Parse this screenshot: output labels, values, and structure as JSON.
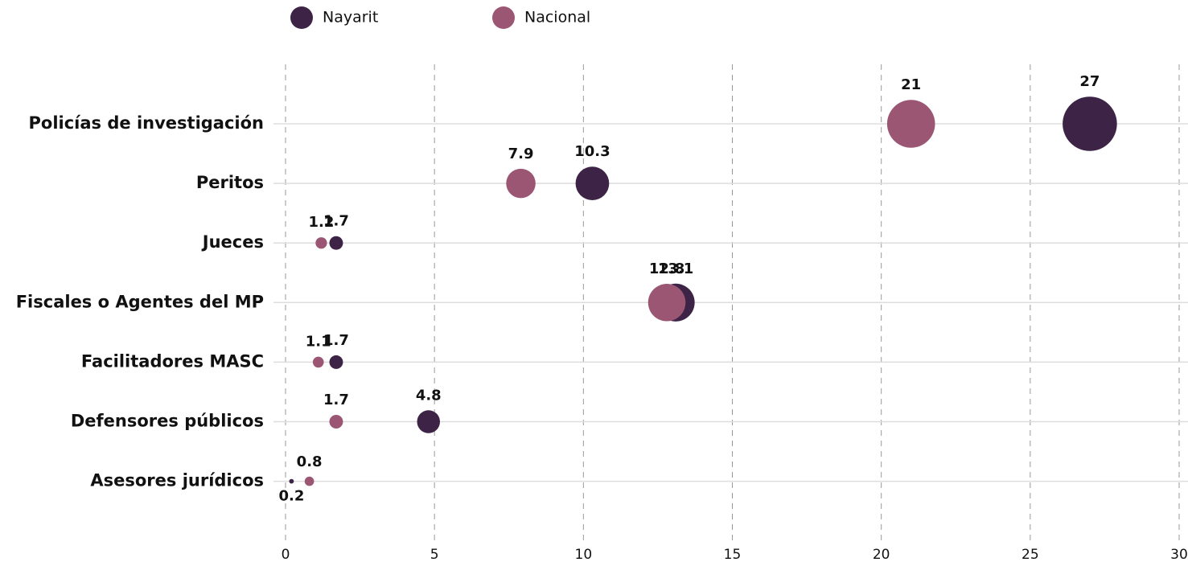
{
  "chart_data": {
    "type": "scatter",
    "categories": [
      "Policías de investigación",
      "Peritos",
      "Jueces",
      "Fiscales o Agentes del MP",
      "Facilitadores MASC",
      "Defensores públicos",
      "Asesores jurídicos"
    ],
    "series": [
      {
        "name": "Nayarit",
        "color": "#3d2447",
        "values": [
          27,
          10.3,
          1.7,
          13.1,
          1.7,
          4.8,
          0.2
        ]
      },
      {
        "name": "Nacional",
        "color": "#9b5673",
        "values": [
          21,
          7.9,
          1.2,
          12.8,
          1.1,
          1.7,
          0.8
        ]
      }
    ],
    "xlim": [
      0,
      30
    ],
    "xticks": [
      0,
      5,
      10,
      15,
      20,
      25,
      30
    ],
    "grid": true
  }
}
